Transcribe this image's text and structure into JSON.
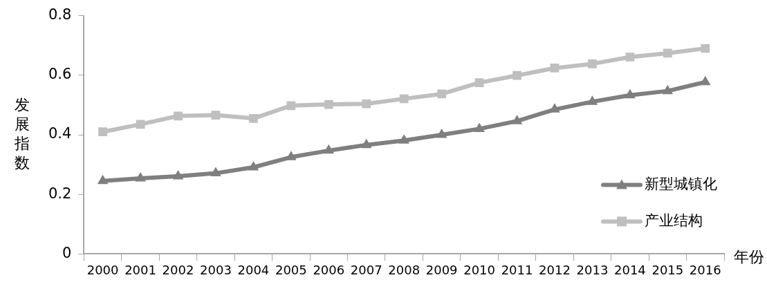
{
  "chart_data": {
    "type": "line",
    "ylabel": "发展指数",
    "xlabel": "年份",
    "categories": [
      "2000",
      "2001",
      "2002",
      "2003",
      "2004",
      "2005",
      "2006",
      "2007",
      "2008",
      "2009",
      "2010",
      "2011",
      "2012",
      "2013",
      "2014",
      "2015",
      "2016"
    ],
    "series": [
      {
        "name": "新型城镇化",
        "color": "#7f7f7f",
        "marker": "triangle",
        "values": [
          0.245,
          0.254,
          0.261,
          0.271,
          0.291,
          0.325,
          0.347,
          0.366,
          0.381,
          0.4,
          0.42,
          0.446,
          0.485,
          0.511,
          0.533,
          0.547,
          0.577
        ]
      },
      {
        "name": "产业结构",
        "color": "#bfbfbf",
        "marker": "square",
        "values": [
          0.41,
          0.435,
          0.463,
          0.466,
          0.455,
          0.498,
          0.502,
          0.504,
          0.521,
          0.537,
          0.575,
          0.599,
          0.624,
          0.638,
          0.661,
          0.674,
          0.69
        ]
      }
    ],
    "ylim": [
      0,
      0.8
    ],
    "yticks": [
      0,
      0.2,
      0.4,
      0.6,
      0.8
    ],
    "grid": false,
    "legend": "bottom right",
    "line_style": "solid"
  }
}
